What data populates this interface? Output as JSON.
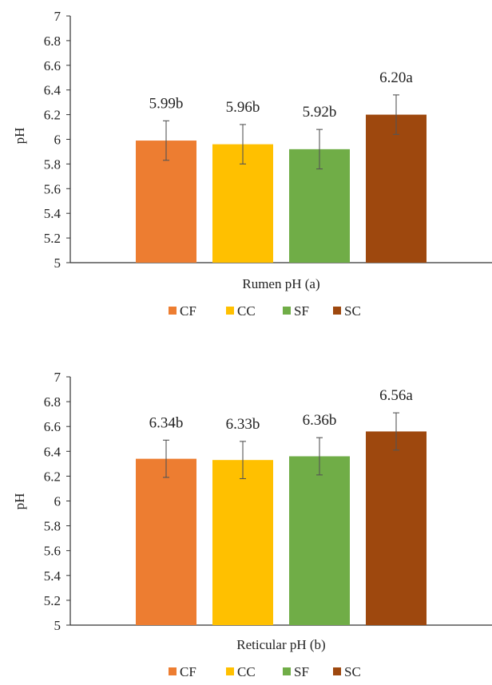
{
  "chart_data": [
    {
      "type": "bar",
      "categories": [
        "CF",
        "CC",
        "SF",
        "SC"
      ],
      "values": [
        5.99,
        5.96,
        5.92,
        6.2
      ],
      "errors": [
        0.16,
        0.16,
        0.16,
        0.16
      ],
      "data_labels": [
        "5.99b",
        "5.96b",
        "5.92b",
        "6.20a"
      ],
      "xlabel": "Rumen pH (a)",
      "ylabel": "pH",
      "ylim": [
        5,
        7
      ],
      "yticks": [
        "5",
        "5.2",
        "5.4",
        "5.6",
        "5.8",
        "6",
        "6.2",
        "6.4",
        "6.6",
        "6.8",
        "7"
      ],
      "grid": false,
      "legend": "bottom",
      "legend_entries": [
        "CF",
        "CC",
        "SF",
        "SC"
      ],
      "colors": [
        "#ED7D31",
        "#FFC000",
        "#70AD47",
        "#9E480E"
      ]
    },
    {
      "type": "bar",
      "categories": [
        "CF",
        "CC",
        "SF",
        "SC"
      ],
      "values": [
        6.34,
        6.33,
        6.36,
        6.56
      ],
      "errors": [
        0.15,
        0.15,
        0.15,
        0.15
      ],
      "data_labels": [
        "6.34b",
        "6.33b",
        "6.36b",
        "6.56a"
      ],
      "xlabel": "Reticular pH (b)",
      "ylabel": "pH",
      "ylim": [
        5,
        7
      ],
      "yticks": [
        "5",
        "5.2",
        "5.4",
        "5.6",
        "5.8",
        "6",
        "6.2",
        "6.4",
        "6.6",
        "6.8",
        "7"
      ],
      "grid": false,
      "legend": "bottom",
      "legend_entries": [
        "CF",
        "CC",
        "SF",
        "SC"
      ],
      "colors": [
        "#ED7D31",
        "#FFC000",
        "#70AD47",
        "#9E480E"
      ]
    }
  ]
}
